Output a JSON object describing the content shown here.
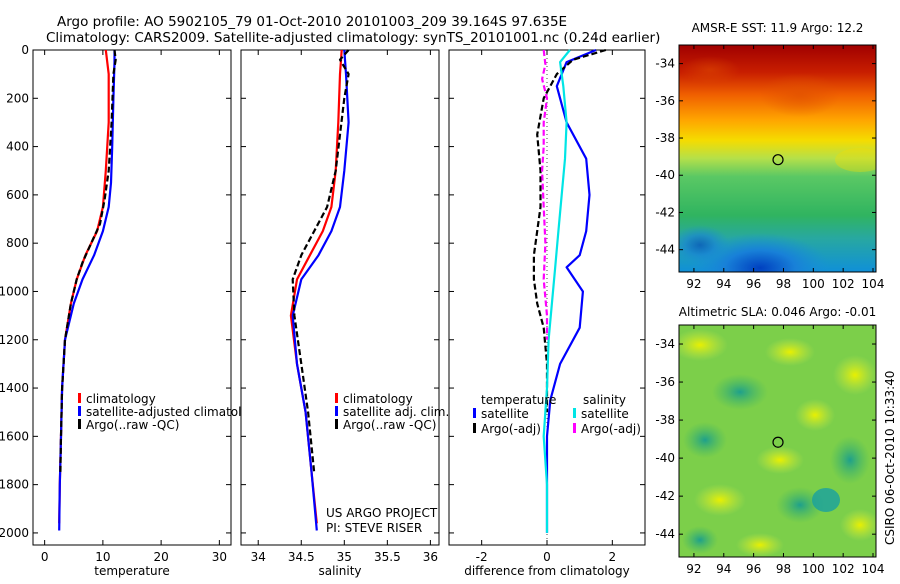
{
  "figure": {
    "title_line1": "Argo profile: AO 5902105_79 01-Oct-2010 20101003_209 39.164S 97.635E",
    "title_line2": "Climatology: CARS2009. Satellite-adjusted climatology: synTS_20101001.nc (0.24d earlier)",
    "credit_line1": "US ARGO PROJECT",
    "credit_line2": "PI: STEVE RISER",
    "timestamp": "CSIRO 06-Oct-2010 10:33:40"
  },
  "colors": {
    "climatology": "#ff0000",
    "satellite": "#0000ff",
    "argo": "#000000",
    "salinity_satellite": "#00e5e5",
    "salinity_argo": "#ff00ff"
  },
  "chart_data": [
    {
      "type": "line",
      "xlabel": "temperature",
      "ylim": [
        2050,
        0
      ],
      "xlim": [
        -2,
        32
      ],
      "xticks": [
        0,
        10,
        20,
        30
      ],
      "yticks": [
        0,
        200,
        400,
        600,
        800,
        1000,
        1200,
        1400,
        1600,
        1800,
        2000
      ],
      "legend": [
        "climatology",
        "satellite-adjusted climatolog",
        "Argo(..raw -QC)"
      ],
      "series": [
        {
          "name": "climatology",
          "color": "#ff0000",
          "style": "solid",
          "x": [
            10.5,
            11.0,
            11.0,
            10.5,
            10.0,
            9.0,
            7.0,
            5.5,
            4.5,
            3.5,
            3.0,
            2.8,
            2.6,
            2.5
          ],
          "y": [
            0,
            100,
            300,
            500,
            650,
            750,
            850,
            950,
            1050,
            1200,
            1400,
            1600,
            1800,
            1960
          ]
        },
        {
          "name": "satellite-adjusted climatolog",
          "color": "#0000ff",
          "style": "solid",
          "x": [
            12.0,
            12.0,
            11.8,
            11.6,
            11.4,
            11.0,
            10.0,
            8.5,
            6.5,
            5.0,
            3.5,
            3.0,
            2.8,
            2.6,
            2.5
          ],
          "y": [
            0,
            50,
            200,
            400,
            550,
            650,
            750,
            850,
            950,
            1050,
            1200,
            1400,
            1600,
            1800,
            1990
          ]
        },
        {
          "name": "Argo(..raw -QC)",
          "color": "#000000",
          "style": "dash",
          "x": [
            12.0,
            12.2,
            11.8,
            11.5,
            11.0,
            10.3,
            9.5,
            8.0,
            6.5,
            5.5,
            4.5,
            3.5,
            3.0,
            2.8,
            2.7
          ],
          "y": [
            0,
            40,
            100,
            300,
            500,
            620,
            720,
            800,
            880,
            950,
            1050,
            1200,
            1400,
            1600,
            1750
          ]
        }
      ]
    },
    {
      "type": "line",
      "xlabel": "salinity",
      "ylim": [
        2050,
        0
      ],
      "xlim": [
        33.8,
        36.1
      ],
      "xticks": [
        34,
        34.5,
        35,
        35.5,
        36
      ],
      "legend": [
        "climatology",
        "satellite adj. clim.",
        "Argo(..raw -QC)"
      ],
      "series": [
        {
          "name": "climatology",
          "color": "#ff0000",
          "style": "solid",
          "x": [
            34.97,
            34.95,
            34.93,
            34.9,
            34.85,
            34.75,
            34.6,
            34.45,
            34.38,
            34.45,
            34.55,
            34.62,
            34.68
          ],
          "y": [
            0,
            100,
            300,
            500,
            650,
            750,
            850,
            950,
            1100,
            1300,
            1500,
            1750,
            1960
          ]
        },
        {
          "name": "satellite adj. clim.",
          "color": "#0000ff",
          "style": "solid",
          "x": [
            35.0,
            35.02,
            35.05,
            35.0,
            34.95,
            34.85,
            34.7,
            34.5,
            34.4,
            34.45,
            34.55,
            34.62,
            34.68
          ],
          "y": [
            0,
            100,
            300,
            500,
            650,
            750,
            850,
            950,
            1100,
            1300,
            1500,
            1750,
            1990
          ]
        },
        {
          "name": "Argo(..raw -QC)",
          "color": "#000000",
          "style": "dash",
          "x": [
            35.05,
            34.95,
            35.05,
            35.0,
            34.95,
            34.9,
            34.8,
            34.65,
            34.5,
            34.4,
            34.42,
            34.5,
            34.58,
            34.65
          ],
          "y": [
            0,
            40,
            100,
            200,
            350,
            500,
            650,
            750,
            850,
            950,
            1100,
            1300,
            1500,
            1750
          ]
        }
      ]
    },
    {
      "type": "line",
      "xlabel": "difference from climatology",
      "ylim": [
        2050,
        0
      ],
      "xlim": [
        -3,
        3
      ],
      "xticks": [
        -2,
        0,
        2
      ],
      "legend_headers": [
        "temperature",
        "salinity"
      ],
      "legend": [
        "satellite",
        "Argo(-adj)",
        "satellite",
        "Argo(-adj)"
      ],
      "series": [
        {
          "name": "satellite",
          "group": "temperature",
          "color": "#0000ff",
          "style": "solid",
          "x": [
            1.5,
            0.6,
            0.3,
            0.6,
            1.2,
            1.3,
            1.2,
            1.0,
            0.6,
            1.1,
            1.0,
            0.4,
            0.1,
            0.0,
            0.0,
            0.0
          ],
          "y": [
            0,
            50,
            150,
            300,
            450,
            600,
            750,
            850,
            900,
            1000,
            1150,
            1300,
            1450,
            1600,
            1800,
            2000
          ]
        },
        {
          "name": "Argo(-adj)",
          "group": "temperature",
          "color": "#000000",
          "style": "dash",
          "x": [
            1.8,
            0.8,
            0.3,
            -0.1,
            -0.3,
            -0.2,
            -0.2,
            -0.3,
            -0.4,
            -0.4,
            -0.3,
            -0.1,
            0.0,
            0.0
          ],
          "y": [
            0,
            40,
            100,
            200,
            350,
            500,
            650,
            750,
            850,
            950,
            1050,
            1150,
            1300,
            1500
          ]
        },
        {
          "name": "satellite",
          "group": "salinity",
          "color": "#00e5e5",
          "style": "solid",
          "x": [
            0.7,
            0.4,
            0.5,
            0.6,
            0.55,
            0.45,
            0.35,
            0.25,
            0.15,
            0.05,
            0.0,
            -0.1,
            0.0,
            0.0
          ],
          "y": [
            0,
            50,
            150,
            300,
            450,
            600,
            750,
            900,
            1050,
            1200,
            1400,
            1600,
            1800,
            2000
          ]
        },
        {
          "name": "Argo(-adj)",
          "group": "salinity",
          "color": "#ff00ff",
          "style": "dash",
          "x": [
            -0.1,
            -0.05,
            -0.15,
            0.0,
            -0.1,
            -0.1,
            -0.15,
            -0.1,
            -0.05,
            -0.1,
            0.0,
            0.0
          ],
          "y": [
            0,
            60,
            120,
            200,
            300,
            400,
            500,
            650,
            800,
            950,
            1100,
            1200
          ]
        }
      ]
    },
    {
      "type": "heatmap",
      "title": "AMSR-E SST: 11.9 Argo: 12.2",
      "xlim": [
        91,
        104.2
      ],
      "ylim": [
        -45.2,
        -33
      ],
      "xticks": [
        92,
        94,
        96,
        98,
        100,
        102,
        104
      ],
      "yticks": [
        -34,
        -36,
        -38,
        -40,
        -42,
        -44
      ],
      "marker": {
        "lon": 97.635,
        "lat": -39.164
      }
    },
    {
      "type": "heatmap",
      "title": "Altimetric SLA: 0.046 Argo: -0.01",
      "xlim": [
        91,
        104.2
      ],
      "ylim": [
        -45.2,
        -33
      ],
      "xticks": [
        92,
        94,
        96,
        98,
        100,
        102,
        104
      ],
      "yticks": [
        -34,
        -36,
        -38,
        -40,
        -42,
        -44
      ],
      "marker": {
        "lon": 97.635,
        "lat": -39.164
      }
    }
  ]
}
